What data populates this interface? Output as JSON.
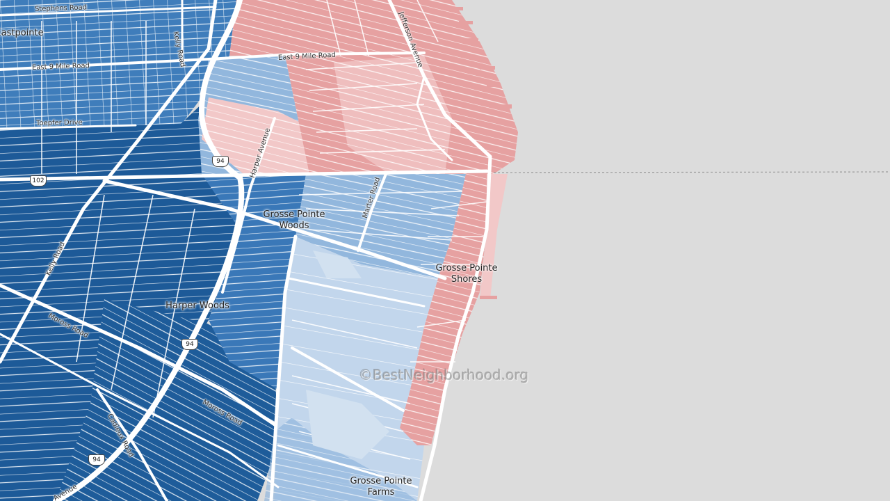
{
  "map": {
    "colors": {
      "water": "#dcdcdc",
      "dark_blue": "#1d5a98",
      "mid_blue": "#3a78b8",
      "light_blue": "#92b7dd",
      "pale_blue": "#c2d6ec",
      "pink": "#e6a1a1",
      "pale_pink": "#f2c8c8",
      "road": "#ffffff"
    },
    "places": {
      "eastpointe": "Eastpointe",
      "gpw_line1": "Grosse Pointe",
      "gpw_line2": "Woods",
      "gps_line1": "Grosse Pointe",
      "gps_line2": "Shores",
      "harper_woods": "Harper Woods",
      "gpf_line1": "Grosse Pointe",
      "gpf_line2": "Farms"
    },
    "streets": {
      "stephens": "Stephens Road",
      "kelly_top": "Kelly Road",
      "east9mile_left": "East 9 Mile Road",
      "east9mile_right": "East 9 Mile Road",
      "toepfer": "Toepfer Drive",
      "jefferson": "Jefferson Avenue",
      "harper": "Harper Avenue",
      "marter": "Marter Road",
      "kelly_mid": "Kelly Road",
      "moross_left": "Moross Road",
      "moross_right": "Moross Road",
      "cadieux": "Cadieux Road",
      "avenue_bottom": "Avenue"
    },
    "shields": {
      "i94_top": "94",
      "route102": "102",
      "i94_mid": "94",
      "i94_bottom": "94"
    },
    "watermark": "©BestNeighborhood.org"
  }
}
